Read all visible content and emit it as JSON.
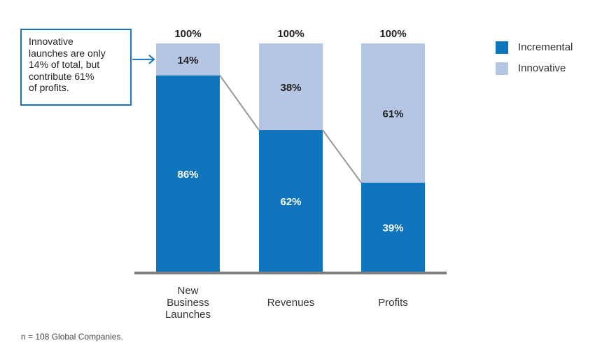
{
  "chart_data": {
    "type": "bar",
    "stacked": true,
    "categories": [
      "New Business Launches",
      "Revenues",
      "Profits"
    ],
    "category_lines": [
      [
        "New",
        "Business",
        "Launches"
      ],
      [
        "Revenues"
      ],
      [
        "Profits"
      ]
    ],
    "series": [
      {
        "name": "Incremental",
        "values": [
          86,
          62,
          39
        ],
        "labels": [
          "86%",
          "62%",
          "39%"
        ],
        "color": "#0f75bc"
      },
      {
        "name": "Innovative",
        "values": [
          14,
          38,
          61
        ],
        "labels": [
          "14%",
          "38%",
          "61%"
        ],
        "color": "#b5c5e4"
      }
    ],
    "totals": [
      "100%",
      "100%",
      "100%"
    ],
    "ylim": [
      0,
      100
    ],
    "grid": false,
    "legend_position": "top-right",
    "title": "",
    "xlabel": "",
    "ylabel": "",
    "connector_color": "#999999",
    "baseline_color": "#808080"
  },
  "callout": {
    "lines": [
      "Innovative",
      "launches are only",
      "14% of total, but",
      "contribute 61%",
      "of profits."
    ],
    "arrow_color": "#1b75bb"
  },
  "footnote": "n = 108 Global Companies."
}
